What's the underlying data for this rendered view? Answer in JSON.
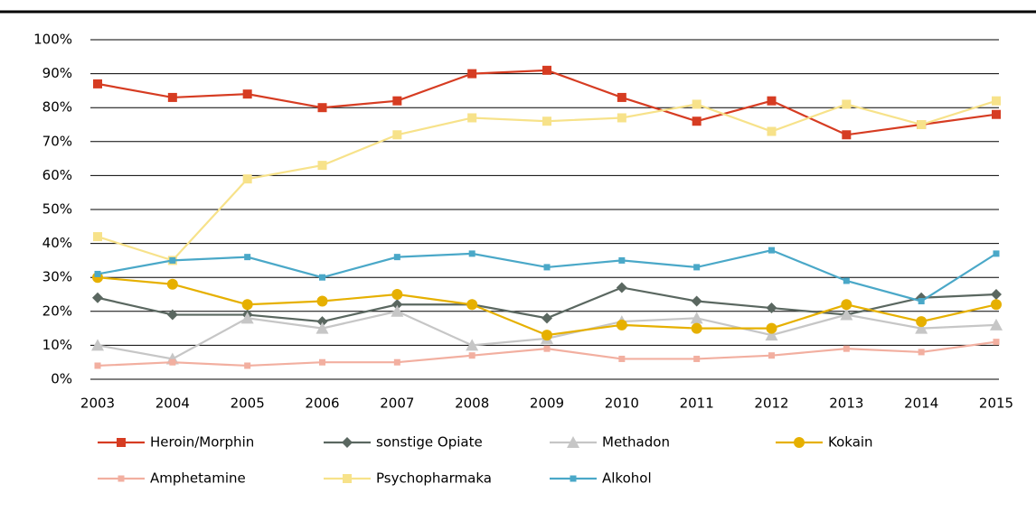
{
  "chart_data": {
    "type": "line",
    "categories": [
      "2003",
      "2004",
      "2005",
      "2006",
      "2007",
      "2008",
      "2009",
      "2010",
      "2011",
      "2012",
      "2013",
      "2014",
      "2015"
    ],
    "ylim": [
      0,
      100
    ],
    "yticks": [
      {
        "value": 0,
        "label": "0%"
      },
      {
        "value": 10,
        "label": "10%"
      },
      {
        "value": 20,
        "label": "20%"
      },
      {
        "value": 30,
        "label": "30%"
      },
      {
        "value": 40,
        "label": "40%"
      },
      {
        "value": 50,
        "label": "50%"
      },
      {
        "value": 60,
        "label": "60%"
      },
      {
        "value": 70,
        "label": "70%"
      },
      {
        "value": 80,
        "label": "80%"
      },
      {
        "value": 90,
        "label": "90%"
      },
      {
        "value": 100,
        "label": "100%"
      }
    ],
    "grid": true,
    "series": [
      {
        "name": "Heroin/Morphin",
        "color": "#d63c22",
        "marker": "square",
        "values": [
          87,
          83,
          84,
          80,
          82,
          90,
          91,
          83,
          76,
          82,
          72,
          75,
          78
        ]
      },
      {
        "name": "sonstige Opiate",
        "color": "#5a6760",
        "marker": "diamond",
        "values": [
          24,
          19,
          19,
          17,
          22,
          22,
          18,
          27,
          23,
          21,
          19,
          24,
          25
        ]
      },
      {
        "name": "Methadon",
        "color": "#c6c6c6",
        "marker": "triangle",
        "values": [
          10,
          6,
          18,
          15,
          20,
          10,
          12,
          17,
          18,
          13,
          19,
          15,
          16
        ]
      },
      {
        "name": "Kokain",
        "color": "#e6b000",
        "marker": "circle",
        "values": [
          30,
          28,
          22,
          23,
          25,
          22,
          13,
          16,
          15,
          15,
          22,
          17,
          22
        ]
      },
      {
        "name": "Amphetamine",
        "color": "#f2afa0",
        "marker": "square",
        "values": [
          4,
          5,
          4,
          5,
          5,
          7,
          9,
          6,
          6,
          7,
          9,
          8,
          11
        ]
      },
      {
        "name": "Psychopharmaka",
        "color": "#f7e28a",
        "marker": "square",
        "values": [
          42,
          35,
          59,
          63,
          72,
          77,
          76,
          77,
          81,
          73,
          81,
          75,
          82
        ]
      },
      {
        "name": "Alkohol",
        "color": "#4aa8c8",
        "marker": "square",
        "values": [
          31,
          35,
          36,
          30,
          36,
          37,
          33,
          35,
          33,
          38,
          29,
          23,
          37
        ]
      }
    ]
  }
}
